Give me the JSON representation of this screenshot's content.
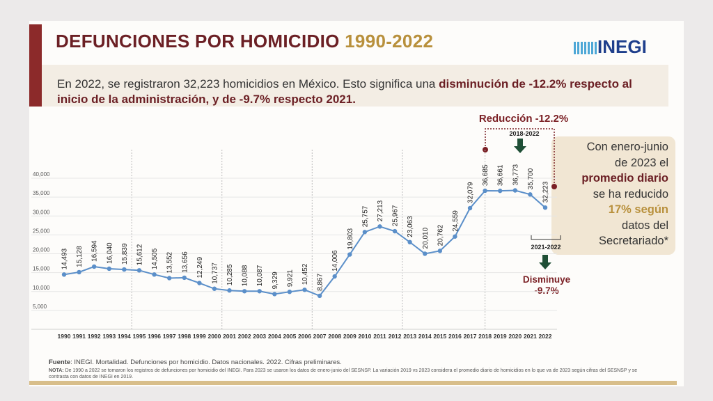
{
  "logo": "INEGI",
  "chart_data": {
    "type": "line",
    "title": "DEFUNCIONES POR HOMICIDIO",
    "title_highlight": "1990-2022",
    "subtitle": "En 2022, se registraron 32,223 homicidios en México. Esto significa una",
    "subtitle_bold": "disminución de -12.2% respecto al inicio de la administración, y de -9.7% respecto 2021.",
    "categories": [
      "1990",
      "1991",
      "1992",
      "1993",
      "1994",
      "1995",
      "1996",
      "1997",
      "1998",
      "1999",
      "2000",
      "2001",
      "2002",
      "2003",
      "2004",
      "2005",
      "2006",
      "2007",
      "2008",
      "2009",
      "2010",
      "2011",
      "2012",
      "2013",
      "2014",
      "2015",
      "2016",
      "2017",
      "2018",
      "2019",
      "2020",
      "2021",
      "2022"
    ],
    "values": [
      14493,
      15128,
      16594,
      16040,
      15839,
      15612,
      14505,
      13552,
      13656,
      12249,
      10737,
      10285,
      10088,
      10087,
      9329,
      9921,
      10452,
      8867,
      14006,
      19803,
      25757,
      27213,
      25967,
      23063,
      20010,
      20762,
      24559,
      32079,
      36685,
      36661,
      36773,
      35700,
      32223
    ],
    "value_labels": [
      "14,493",
      "15,128",
      "16,594",
      "16,040",
      "15,839",
      "15,612",
      "14,505",
      "13,552",
      "13,656",
      "12,249",
      "10,737",
      "10,285",
      "10,088",
      "10,087",
      "9,329",
      "9,921",
      "10,452",
      "8,867",
      "14,006",
      "19,803",
      "25,757",
      "27,213",
      "25,967",
      "23,063",
      "20,010",
      "20,762",
      "24,559",
      "32,079",
      "36,685",
      "36,661",
      "36,773",
      "35,700",
      "32,223"
    ],
    "color": "#5b8fc9",
    "ylim": [
      0,
      40000
    ],
    "yticks": [
      {
        "value": 5000,
        "label": "5,000"
      },
      {
        "value": 10000,
        "label": "10,000"
      },
      {
        "value": 15000,
        "label": "15,000"
      },
      {
        "value": 20000,
        "label": "20,000"
      },
      {
        "value": 25000,
        "label": "25,000"
      },
      {
        "value": 30000,
        "label": "30,000"
      },
      {
        "value": 35000,
        "label": "35,000"
      },
      {
        "value": 40000,
        "label": "40,000"
      }
    ],
    "grid": true,
    "annotations": {
      "reduction": "Reducción -12.2%",
      "period_admin": "2018-2022",
      "period_year": "2021-2022",
      "decrease": "Disminuye",
      "decrease_value": "-9.7%"
    },
    "note_box": [
      "Con enero-junio",
      "de 2023 el",
      "promedio diario",
      "se ha reducido",
      "17% según",
      "datos del",
      "Secretariado*"
    ],
    "source_label": "Fuente",
    "source": ": INEGI. Mortalidad. Defunciones por homicidio. Datos nacionales. 2022. Cifras preliminares.",
    "note_label": "NOTA:",
    "note": " De 1990 a 2022 se tomaron los registros de defunciones por homicidio del INEGI. Para 2023 se usaron los datos de enero-junio del SESNSP. La variación 2019 vs 2023 considera el promedio diario de homicidios en lo que va de 2023 según cifras del SESNSP y se contrasta con datos de INEGI en 2019."
  }
}
